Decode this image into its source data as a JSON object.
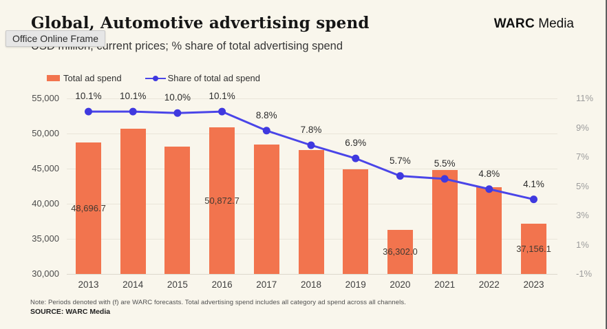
{
  "overlay": {
    "tooltip": "Office Online Frame"
  },
  "header": {
    "title": "Global, Automotive advertising spend",
    "subtitle": "USD million, current prices; % share of total advertising spend",
    "brand_bold": "WARC",
    "brand_regular": "Media"
  },
  "legend": {
    "items": [
      {
        "label": "Total ad spend",
        "type": "bar"
      },
      {
        "label": "Share of total ad spend",
        "type": "line"
      }
    ]
  },
  "chart_data": {
    "type": "combo-bar-line",
    "title": "Global, Automotive advertising spend",
    "subtitle": "USD million, current prices; % share of total advertising spend",
    "categories": [
      "2013",
      "2014",
      "2015",
      "2016",
      "2017",
      "2018",
      "2019",
      "2020",
      "2021",
      "2022",
      "2023"
    ],
    "series": [
      {
        "name": "Total ad spend",
        "type": "bar",
        "axis": "left",
        "values": [
          48696.7,
          50700,
          48150,
          50872.7,
          48400,
          47650,
          44900,
          36302.0,
          44800,
          42350,
          37156.1
        ],
        "value_labels": [
          "48,696.7",
          "",
          "",
          "50,872.7",
          "",
          "",
          "",
          "36,302.0",
          "",
          "",
          "37,156.1"
        ]
      },
      {
        "name": "Share of total ad spend",
        "type": "line",
        "axis": "right",
        "values": [
          10.1,
          10.1,
          10.0,
          10.1,
          8.8,
          7.8,
          6.9,
          5.7,
          5.5,
          4.8,
          4.1
        ],
        "point_labels": [
          "10.1%",
          "10.1%",
          "10.0%",
          "10.1%",
          "8.8%",
          "7.8%",
          "6.9%",
          "5.7%",
          "5.5%",
          "4.8%",
          "4.1%"
        ]
      }
    ],
    "left_axis": {
      "min": 30000,
      "max": 55000,
      "ticks": [
        "55,000",
        "50,000",
        "45,000",
        "40,000",
        "35,000",
        "30,000"
      ]
    },
    "right_axis": {
      "min": -1,
      "max": 11,
      "ticks": [
        "11%",
        "9%",
        "7%",
        "5%",
        "3%",
        "1%",
        "-1%"
      ]
    },
    "xlabel": "",
    "ylabel": "",
    "grid": "horizontal",
    "legend_position": "top-left",
    "colors": {
      "bar": "#f2744e",
      "line": "#4a45e8",
      "marker": "#3f39df",
      "background": "#f9f6ec"
    }
  },
  "footer": {
    "note": "Note: Periods denoted with (f) are WARC forecasts. Total advertising spend includes all category ad spend across all channels.",
    "source": "SOURCE: WARC Media"
  }
}
